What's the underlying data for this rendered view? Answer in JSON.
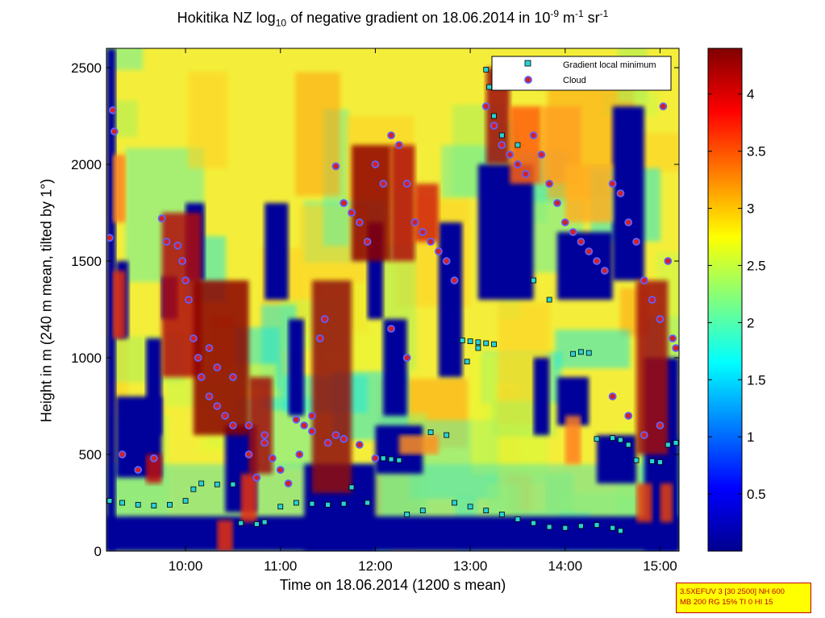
{
  "title": {
    "prefix": "Hokitika NZ log",
    "sub": "10",
    "middle": " of negative gradient on 18.06.2014 in 10",
    "sup1": "-9",
    "mid2": " m",
    "sup2": "-1",
    "mid3": " sr",
    "sup3": "-1"
  },
  "info_box": {
    "line1": "3.5XEFUV 3 [30 2500] NH 600",
    "line2": "MB 200 RG 15% TI 0 HI 15"
  },
  "chart_data": {
    "type": "heatmap",
    "xlabel": "Time on 18.06.2014 (1200 s mean)",
    "ylabel": "Height in m (240 m mean, tilted by 1°)",
    "xlim": [
      "09:10",
      "15:12"
    ],
    "ylim": [
      0,
      2600
    ],
    "x_ticks": [
      "10:00",
      "11:00",
      "12:00",
      "13:00",
      "14:00",
      "15:00"
    ],
    "y_ticks": [
      0,
      500,
      1000,
      1500,
      2000,
      2500
    ],
    "colorbar": {
      "range": [
        0,
        4.4
      ],
      "ticks": [
        0.5,
        1,
        1.5,
        2,
        2.5,
        3,
        3.5,
        4
      ],
      "colormap": "jet"
    },
    "legend": {
      "placement": "top-right",
      "entries": [
        {
          "label": "Gradient local minimum",
          "marker": "square",
          "color": "#2ad1d6"
        },
        {
          "label": "Cloud",
          "marker": "circle",
          "color": "#d42020"
        }
      ]
    },
    "gradient_minimum_series": [
      {
        "name": "",
        "points": [
          [
            "09:12",
            260
          ],
          [
            "09:20",
            250
          ],
          [
            "09:30",
            240
          ],
          [
            "09:40",
            235
          ],
          [
            "09:50",
            240
          ],
          [
            "10:00",
            260
          ],
          [
            "10:05",
            320
          ],
          [
            "10:10",
            350
          ],
          [
            "10:20",
            345
          ],
          [
            "10:30",
            345
          ],
          [
            "10:35",
            145
          ],
          [
            "10:45",
            140
          ],
          [
            "10:50",
            150
          ],
          [
            "11:00",
            230
          ],
          [
            "11:10",
            250
          ],
          [
            "11:20",
            245
          ],
          [
            "11:30",
            240
          ],
          [
            "11:40",
            245
          ],
          [
            "11:45",
            330
          ],
          [
            "11:55",
            250
          ],
          [
            "12:05",
            480
          ],
          [
            "12:10",
            475
          ],
          [
            "12:15",
            470
          ],
          [
            "12:20",
            190
          ],
          [
            "12:30",
            210
          ],
          [
            "12:35",
            615
          ],
          [
            "12:45",
            600
          ],
          [
            "12:50",
            250
          ],
          [
            "13:00",
            230
          ],
          [
            "13:10",
            210
          ],
          [
            "13:20",
            190
          ],
          [
            "13:30",
            165
          ],
          [
            "13:40",
            145
          ],
          [
            "13:50",
            125
          ],
          [
            "14:00",
            120
          ],
          [
            "14:10",
            130
          ],
          [
            "14:20",
            135
          ],
          [
            "14:30",
            120
          ],
          [
            "14:35",
            105
          ],
          [
            "14:40",
            550
          ],
          [
            "14:45",
            470
          ],
          [
            "14:55",
            465
          ],
          [
            "15:00",
            460
          ],
          [
            "15:05",
            550
          ],
          [
            "15:10",
            560
          ]
        ]
      },
      {
        "name": "",
        "points": [
          [
            "12:55",
            1090
          ],
          [
            "13:00",
            1085
          ],
          [
            "13:05",
            1080
          ],
          [
            "13:10",
            1075
          ],
          [
            "13:15",
            1070
          ],
          [
            "13:05",
            1050
          ],
          [
            "12:58",
            980
          ],
          [
            "13:10",
            2490
          ],
          [
            "13:12",
            2400
          ],
          [
            "13:15",
            2250
          ],
          [
            "13:20",
            2150
          ],
          [
            "13:30",
            2100
          ],
          [
            "13:40",
            1400
          ],
          [
            "13:50",
            1300
          ],
          [
            "14:05",
            1020
          ],
          [
            "14:10",
            1030
          ],
          [
            "14:15",
            1025
          ],
          [
            "14:20",
            580
          ],
          [
            "14:30",
            585
          ],
          [
            "14:35",
            575
          ]
        ]
      }
    ],
    "cloud_series": [
      {
        "name": "",
        "points": [
          [
            "09:12",
            1620
          ],
          [
            "09:14",
            2280
          ],
          [
            "09:15",
            2170
          ],
          [
            "09:20",
            500
          ],
          [
            "09:30",
            420
          ],
          [
            "09:40",
            480
          ],
          [
            "09:45",
            1720
          ],
          [
            "09:48",
            1600
          ],
          [
            "09:55",
            1580
          ],
          [
            "09:58",
            1500
          ],
          [
            "10:00",
            1400
          ],
          [
            "10:02",
            1300
          ],
          [
            "10:05",
            1100
          ],
          [
            "10:08",
            1000
          ],
          [
            "10:10",
            900
          ],
          [
            "10:15",
            800
          ],
          [
            "10:20",
            750
          ],
          [
            "10:25",
            700
          ],
          [
            "10:30",
            650
          ],
          [
            "10:40",
            500
          ],
          [
            "10:45",
            380
          ],
          [
            "10:50",
            560
          ],
          [
            "10:55",
            480
          ],
          [
            "11:00",
            420
          ],
          [
            "11:05",
            350
          ],
          [
            "11:12",
            500
          ],
          [
            "11:15",
            650
          ],
          [
            "11:20",
            700
          ],
          [
            "11:25",
            1100
          ],
          [
            "11:28",
            1200
          ],
          [
            "11:35",
            1990
          ],
          [
            "11:40",
            1800
          ],
          [
            "11:45",
            1750
          ],
          [
            "11:50",
            1700
          ],
          [
            "11:55",
            1600
          ],
          [
            "12:00",
            2000
          ],
          [
            "12:05",
            1900
          ],
          [
            "12:10",
            2150
          ],
          [
            "12:15",
            2100
          ],
          [
            "12:20",
            1900
          ],
          [
            "12:25",
            1700
          ],
          [
            "12:30",
            1650
          ],
          [
            "12:35",
            1600
          ],
          [
            "12:40",
            1550
          ],
          [
            "12:45",
            1500
          ],
          [
            "12:50",
            1400
          ],
          [
            "13:10",
            2300
          ],
          [
            "13:15",
            2200
          ],
          [
            "13:20",
            2100
          ],
          [
            "13:25",
            2050
          ],
          [
            "13:30",
            2000
          ],
          [
            "13:35",
            1950
          ],
          [
            "13:40",
            2150
          ],
          [
            "13:45",
            2050
          ],
          [
            "13:50",
            1900
          ],
          [
            "13:55",
            1800
          ],
          [
            "14:00",
            1700
          ],
          [
            "14:05",
            1650
          ],
          [
            "14:10",
            1600
          ],
          [
            "14:15",
            1550
          ],
          [
            "14:20",
            1500
          ],
          [
            "14:25",
            1450
          ],
          [
            "14:30",
            1900
          ],
          [
            "14:35",
            1850
          ],
          [
            "14:40",
            1700
          ],
          [
            "14:45",
            1600
          ],
          [
            "14:50",
            1400
          ],
          [
            "14:55",
            1300
          ],
          [
            "15:00",
            1200
          ],
          [
            "15:02",
            2300
          ],
          [
            "15:05",
            1500
          ],
          [
            "15:08",
            1100
          ],
          [
            "15:10",
            1050
          ]
        ]
      },
      {
        "name": "",
        "points": [
          [
            "10:15",
            1050
          ],
          [
            "10:20",
            950
          ],
          [
            "10:30",
            900
          ],
          [
            "10:40",
            650
          ],
          [
            "10:50",
            600
          ],
          [
            "11:10",
            680
          ],
          [
            "11:20",
            620
          ],
          [
            "11:30",
            560
          ],
          [
            "11:35",
            600
          ],
          [
            "11:40",
            580
          ],
          [
            "11:50",
            550
          ],
          [
            "12:00",
            480
          ],
          [
            "12:10",
            1150
          ],
          [
            "12:20",
            1000
          ],
          [
            "14:30",
            800
          ],
          [
            "14:40",
            700
          ],
          [
            "14:50",
            600
          ],
          [
            "15:00",
            650
          ]
        ]
      }
    ]
  }
}
